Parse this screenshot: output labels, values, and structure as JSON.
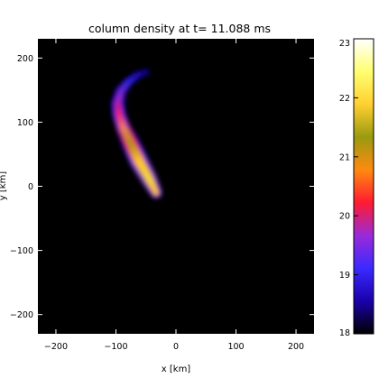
{
  "chart_data": {
    "type": "heatmap",
    "title": "column density at t= 11.088 ms",
    "xlabel": "x [km]",
    "ylabel": "y [km]",
    "xlim": [
      -230,
      230
    ],
    "ylim": [
      -230,
      230
    ],
    "x_ticks": [
      -200,
      -100,
      0,
      100,
      200
    ],
    "x_tick_labels": [
      "−200",
      "−100",
      "0",
      "100",
      "200"
    ],
    "y_ticks": [
      -200,
      -100,
      0,
      100,
      200
    ],
    "y_tick_labels": [
      "−200",
      "−100",
      "0",
      "100",
      "200"
    ],
    "background_color": "#000000",
    "colorbar": {
      "min": 18,
      "max": 23,
      "ticks": [
        18,
        19,
        20,
        21,
        22,
        23
      ],
      "tick_labels": [
        "18",
        "19",
        "20",
        "21",
        "22",
        "23"
      ],
      "colormap": [
        "#000000",
        "#1a00aa",
        "#3a2aff",
        "#9a2ad8",
        "#ff1a30",
        "#ff8a10",
        "#9a9a10",
        "#ffd030",
        "#ffff70",
        "#ffffff"
      ]
    },
    "feature": {
      "description_shape": "crescent arc",
      "centerline_x": [
        -33,
        -45,
        -62,
        -76,
        -88,
        -95,
        -97,
        -92,
        -80,
        -65,
        -45
      ],
      "centerline_y": [
        -10,
        12,
        40,
        68,
        92,
        112,
        130,
        148,
        162,
        173,
        180
      ],
      "values": [
        21.8,
        22.1,
        21.9,
        21.3,
        20.8,
        20.3,
        19.9,
        19.5,
        19.1,
        18.8,
        18.5
      ],
      "widths_km": [
        10,
        14,
        16,
        16,
        15,
        14,
        14,
        13,
        12,
        10,
        7
      ]
    }
  }
}
